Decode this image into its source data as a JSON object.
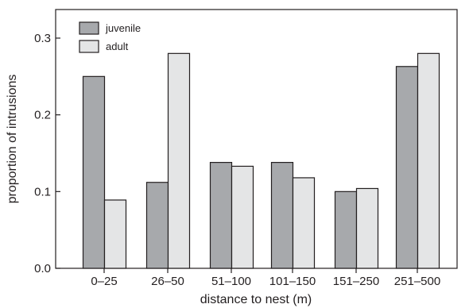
{
  "chart_data": {
    "type": "bar",
    "title": "",
    "xlabel": "distance to nest (m)",
    "ylabel": "proportion of intrusions",
    "categories": [
      "0–25",
      "26–50",
      "51–100",
      "101–150",
      "151–250",
      "251–500"
    ],
    "series": [
      {
        "name": "juvenile",
        "color": "#a7a9ac",
        "values": [
          0.25,
          0.112,
          0.138,
          0.138,
          0.1,
          0.263
        ]
      },
      {
        "name": "adult",
        "color": "#e4e5e6",
        "values": [
          0.089,
          0.28,
          0.133,
          0.118,
          0.104,
          0.28
        ]
      }
    ],
    "ylim": [
      0,
      0.3
    ],
    "yticks": [
      "0.0",
      "0.1",
      "0.2",
      "0.3"
    ],
    "ytick_values": [
      0,
      0.1,
      0.2,
      0.3
    ],
    "grid": false,
    "legend_position": "top-left"
  }
}
